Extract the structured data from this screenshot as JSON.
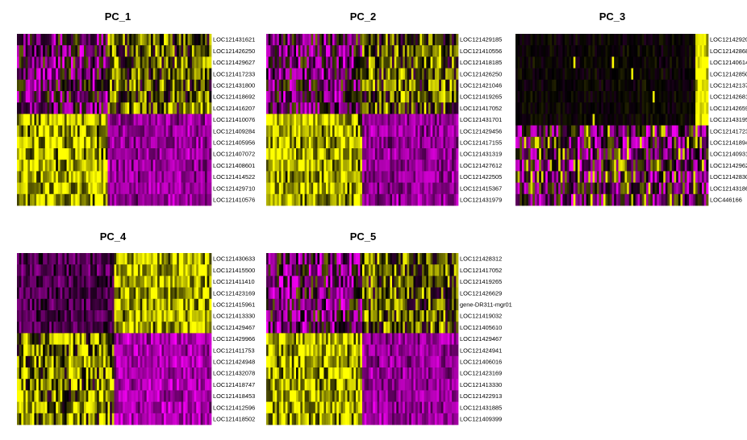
{
  "chart_data": [
    {
      "type": "heatmap",
      "title": "PC_1",
      "palette": [
        "#ff00ff",
        "#000000",
        "#ffff00"
      ],
      "genes": [
        "LOC121431621",
        "LOC121426250",
        "LOC121429627",
        "LOC121417233",
        "LOC121431800",
        "LOC121418692",
        "LOC121416207",
        "LOC121410076",
        "LOC121409284",
        "LOC121405956",
        "LOC121407072",
        "LOC121408601",
        "LOC121414522",
        "LOC121429710",
        "LOC121410576"
      ],
      "high_genes": 7,
      "split": 0.47
    },
    {
      "type": "heatmap",
      "title": "PC_2",
      "palette": [
        "#ff00ff",
        "#000000",
        "#ffff00"
      ],
      "genes": [
        "LOC121429185",
        "LOC121410556",
        "LOC121418185",
        "LOC121426250",
        "LOC121421046",
        "LOC121419265",
        "LOC121417052",
        "LOC121431701",
        "LOC121429456",
        "LOC121417155",
        "LOC121431319",
        "LOC121427612",
        "LOC121422505",
        "LOC121415367",
        "LOC121431979"
      ],
      "high_genes": 7,
      "split": 0.5
    },
    {
      "type": "heatmap",
      "title": "PC_3",
      "palette": [
        "#ff00ff",
        "#000000",
        "#ffff00"
      ],
      "genes": [
        "LOC121429208",
        "LOC121428683",
        "LOC121406143",
        "LOC121428504",
        "LOC121421373",
        "LOC121426818",
        "LOC121426599",
        "LOC121431953",
        "LOC121417232",
        "LOC121418941",
        "LOC121409310",
        "LOC121429628",
        "LOC121428309",
        "LOC121431861",
        "LOC446166"
      ],
      "high_genes": 8,
      "split": 0.93
    },
    {
      "type": "heatmap",
      "title": "PC_4",
      "palette": [
        "#ff00ff",
        "#000000",
        "#ffff00"
      ],
      "genes": [
        "LOC121430633",
        "LOC121415500",
        "LOC121411410",
        "LOC121423169",
        "LOC121415961",
        "LOC121413330",
        "LOC121429467",
        "LOC121429966",
        "LOC121411753",
        "LOC121424948",
        "LOC121432078",
        "LOC121418747",
        "LOC121418453",
        "LOC121412596",
        "LOC121418502"
      ],
      "high_genes": 7,
      "split": 0.5
    },
    {
      "type": "heatmap",
      "title": "PC_5",
      "palette": [
        "#ff00ff",
        "#000000",
        "#ffff00"
      ],
      "genes": [
        "LOC121428312",
        "LOC121417052",
        "LOC121419265",
        "LOC121426629",
        "gene-DR311-mgr01",
        "LOC121419032",
        "LOC121405610",
        "LOC121429467",
        "LOC121424941",
        "LOC121406016",
        "LOC121423169",
        "LOC121413330",
        "LOC121422913",
        "LOC121431885",
        "LOC121409399"
      ],
      "high_genes": 7,
      "split": 0.5
    }
  ]
}
